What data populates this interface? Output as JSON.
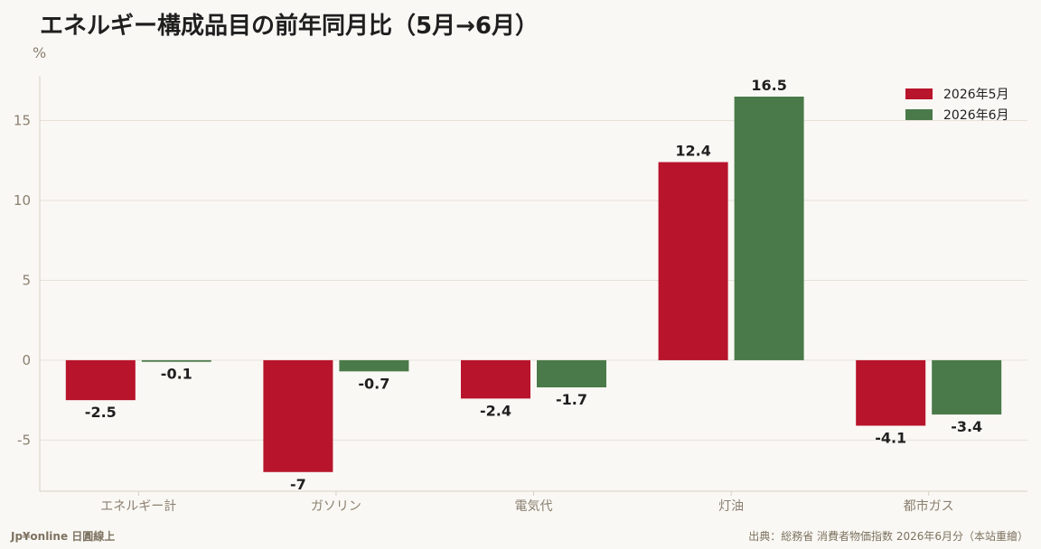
{
  "header": {
    "title": "エネルギー構成品目の前年同月比（5月→6月）",
    "unit": "%"
  },
  "footer": {
    "brand": "Jp¥online 日圓線上",
    "source": "出典：総務省 消費者物価指数 2026年6月分（本站重繪）"
  },
  "chart_data": {
    "type": "bar",
    "title": "エネルギー構成品目の前年同月比（5月→6月）",
    "ylabel": "%",
    "xlabel": "",
    "categories": [
      "エネルギー計",
      "ガソリン",
      "電気代",
      "灯油",
      "都市ガス"
    ],
    "series": [
      {
        "name": "2026年5月",
        "color": "#b8142c",
        "values": [
          -2.5,
          -7,
          -2.4,
          12.4,
          -4.1
        ]
      },
      {
        "name": "2026年6月",
        "color": "#4a7a4a",
        "values": [
          -0.1,
          -0.7,
          -1.7,
          16.5,
          -3.4
        ]
      }
    ],
    "ylim": [
      -8.2,
      17.8
    ],
    "yticks": [
      -5,
      0,
      5,
      10,
      15
    ],
    "grid": true,
    "legend": "top-right",
    "data_labels": true
  }
}
